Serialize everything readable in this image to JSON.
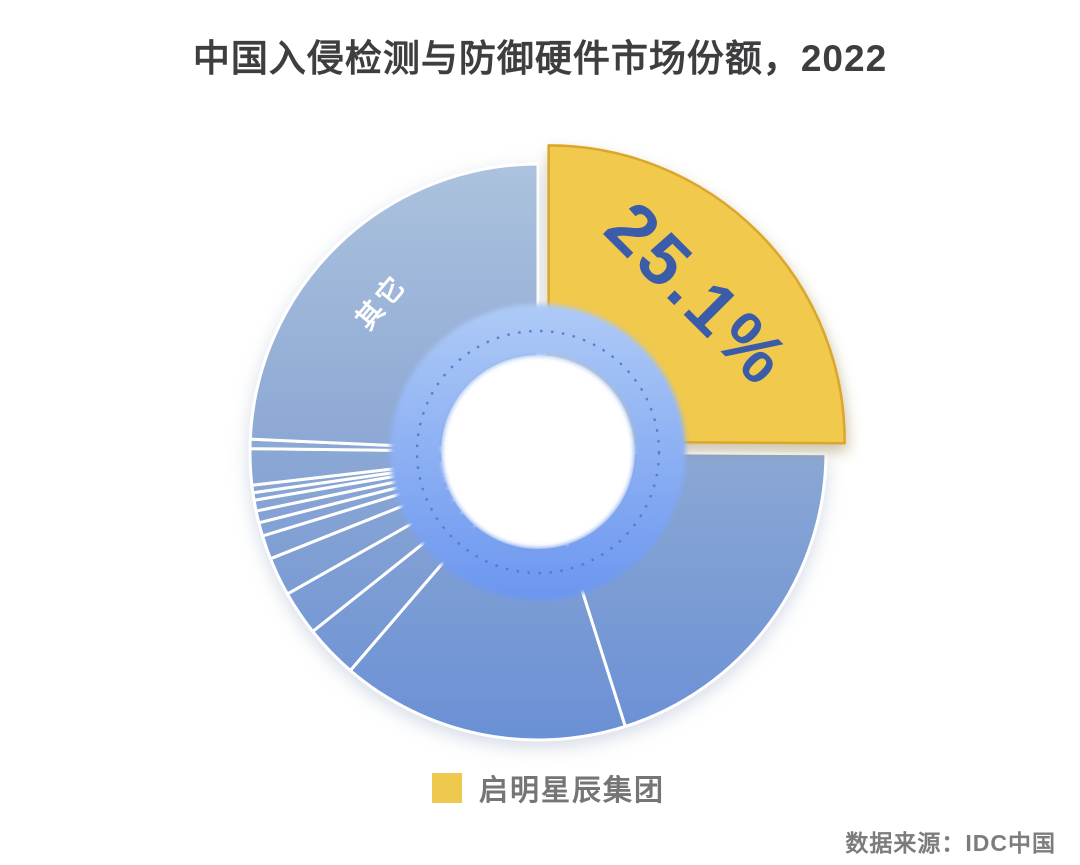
{
  "title": "中国入侵检测与防御硬件市场份额，2022",
  "chart_data": {
    "type": "pie",
    "title": "中国入侵检测与防御硬件市场份额，2022",
    "donut_hole": true,
    "start_angle_deg": 0,
    "direction": "clockwise",
    "legend_position": "bottom",
    "slices": [
      {
        "name": "启明星辰集团",
        "value_pct": 25.1,
        "label": "25.1%",
        "color": "#F0C94E",
        "exploded": true
      },
      {
        "name": "其它",
        "value_pct": 74.9,
        "label": "其它",
        "color": "blue-gradient",
        "exploded": false
      }
    ],
    "others_subslice_degrees": [
      72,
      58.3,
      10.8,
      9,
      7.8,
      4.8,
      2.7,
      2.4,
      2.2,
      1.5,
      1.5,
      7.3,
      1.9,
      87.44
    ]
  },
  "legend": {
    "label": "启明星辰集团",
    "swatch_color": "#EFC94E"
  },
  "source": {
    "text": "数据来源：IDC中国"
  },
  "colors": {
    "background": "#FFFFFF",
    "title_text": "#3E3E40",
    "yellow": "#F0C94E",
    "yellow_edge": "#DBA62A",
    "pct_label": "#3A5CA9",
    "others_label": "#FFFFFF",
    "blue_top": "#ACC2DD",
    "blue_mid": "#8BA7D4",
    "blue_bottom": "#6A90D5",
    "ring_top": "#AECAF6",
    "ring_bottom": "#6B96F0",
    "ring_dots": "#4E79CE",
    "divider": "#FFFFFF",
    "legend_text": "#757575",
    "source_text": "#7C7C7C"
  }
}
